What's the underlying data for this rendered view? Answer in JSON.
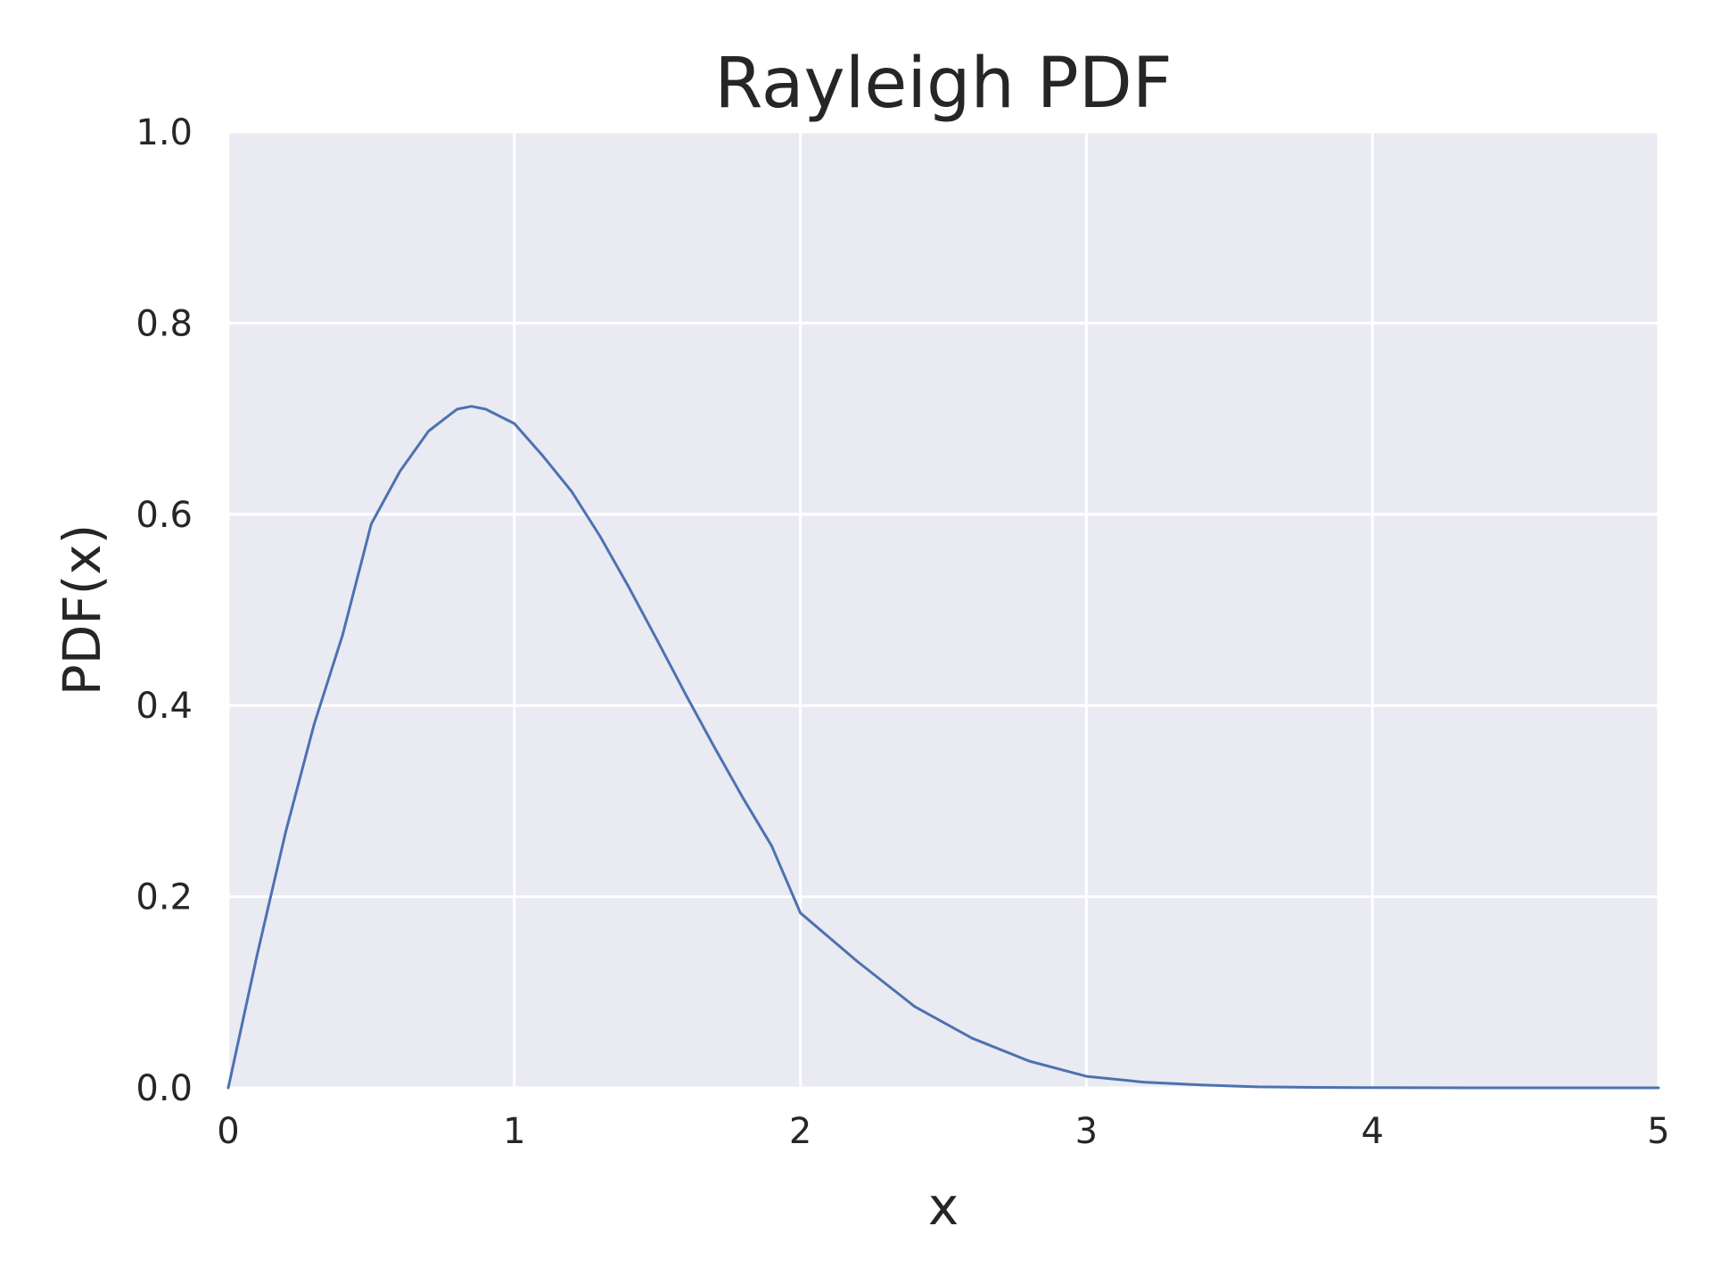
{
  "chart_data": {
    "type": "line",
    "title": "Rayleigh PDF",
    "xlabel": "x",
    "ylabel": "PDF(x)",
    "xlim": [
      0,
      5
    ],
    "ylim": [
      0,
      1.0
    ],
    "xticks": [
      0,
      1,
      2,
      3,
      4,
      5
    ],
    "xtick_labels": [
      "0",
      "1",
      "2",
      "3",
      "4",
      "5"
    ],
    "yticks": [
      0.0,
      0.2,
      0.4,
      0.6,
      0.8,
      1.0
    ],
    "ytick_labels": [
      "0.0",
      "0.2",
      "0.4",
      "0.6",
      "0.8",
      "1.0"
    ],
    "grid": true,
    "colors": {
      "plot_background": "#eaeaf2",
      "grid": "#ffffff",
      "line": "#4c72b0",
      "text": "#262626"
    },
    "series": [
      {
        "x": [
          0,
          0.1,
          0.2,
          0.3,
          0.4,
          0.5,
          0.6,
          0.7,
          0.8,
          0.85,
          0.9,
          1.0,
          1.1,
          1.2,
          1.3,
          1.4,
          1.5,
          1.6,
          1.7,
          1.8,
          1.9,
          2.0,
          2.2,
          2.4,
          2.6,
          2.8,
          3.0,
          3.2,
          3.4,
          3.6,
          3.8,
          4.0,
          4.5,
          5.0
        ],
        "y": [
          0,
          0.138,
          0.267,
          0.38,
          0.474,
          0.59,
          0.645,
          0.687,
          0.71,
          0.713,
          0.71,
          0.695,
          0.661,
          0.624,
          0.577,
          0.524,
          0.468,
          0.411,
          0.356,
          0.303,
          0.253,
          0.183,
          0.132,
          0.085,
          0.052,
          0.028,
          0.012,
          0.006,
          0.003,
          0.001,
          0.0005,
          0.0002,
          0,
          0
        ]
      }
    ]
  }
}
